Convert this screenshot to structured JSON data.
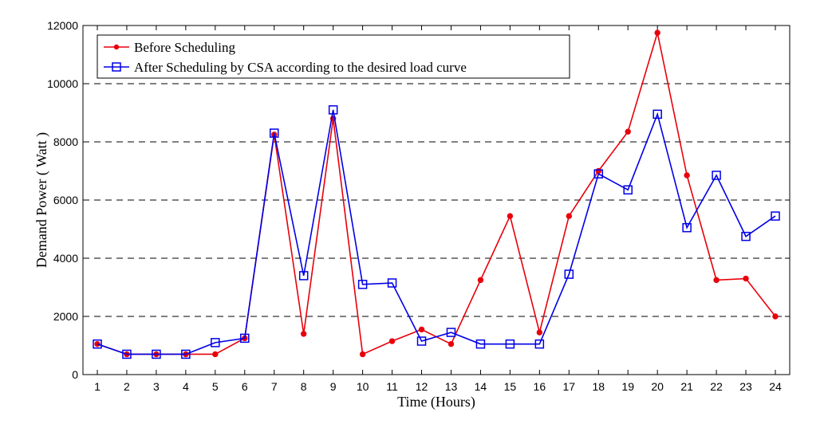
{
  "chart_data": {
    "type": "line",
    "xlabel": "Time (Hours)",
    "ylabel": "Demand Power ( Watt )",
    "xlim": [
      1,
      24
    ],
    "ylim": [
      0,
      12000
    ],
    "x_ticks": [
      1,
      2,
      3,
      4,
      5,
      6,
      7,
      8,
      9,
      10,
      11,
      12,
      13,
      14,
      15,
      16,
      17,
      18,
      19,
      20,
      21,
      22,
      23,
      24
    ],
    "y_ticks": [
      0,
      2000,
      4000,
      6000,
      8000,
      10000,
      12000
    ],
    "grid": "horizontal-dashed",
    "legend_position": "top-left",
    "x": [
      1,
      2,
      3,
      4,
      5,
      6,
      7,
      8,
      9,
      10,
      11,
      12,
      13,
      14,
      15,
      16,
      17,
      18,
      19,
      20,
      21,
      22,
      23,
      24
    ],
    "series": [
      {
        "name": "Before Scheduling",
        "color": "#e8000b",
        "marker": "dot",
        "values": [
          1050,
          700,
          700,
          700,
          700,
          1250,
          8250,
          1400,
          8800,
          700,
          1150,
          1550,
          1050,
          3250,
          5450,
          1450,
          5450,
          7000,
          8350,
          11750,
          6850,
          3250,
          3300,
          2000
        ]
      },
      {
        "name": "After Scheduling by CSA according to the desired load curve",
        "color": "#0000e6",
        "marker": "square",
        "values": [
          1050,
          700,
          700,
          700,
          1100,
          1250,
          8300,
          3400,
          9100,
          3100,
          3150,
          1150,
          1450,
          1050,
          1050,
          1050,
          3450,
          6900,
          6350,
          8950,
          5050,
          6850,
          4750,
          5450
        ]
      }
    ]
  }
}
